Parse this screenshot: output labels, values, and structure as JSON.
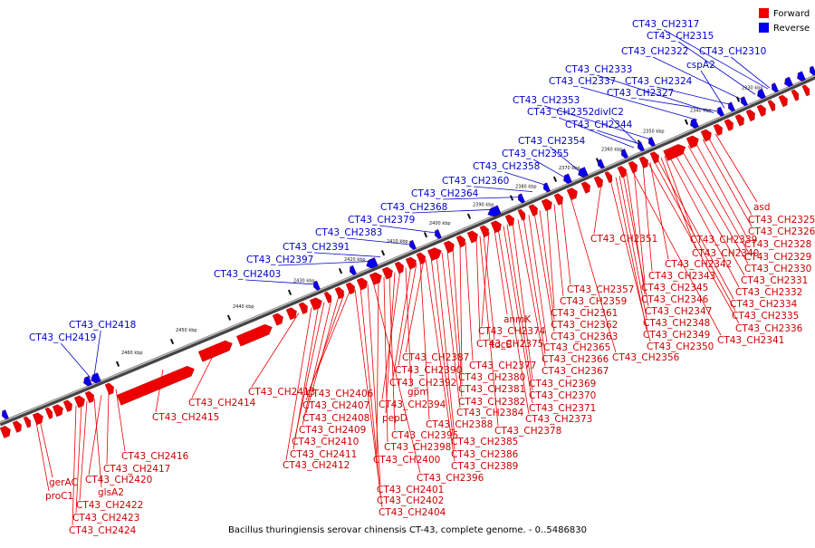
{
  "legend": [
    {
      "label": "Forward",
      "color": "#ee0000"
    },
    {
      "label": "Reverse",
      "color": "#0000ee"
    }
  ],
  "footer": "Bacillus thuringiensis serovar chinensis CT-43, complete genome. - 0..5486830",
  "ticks": [
    "2330 kbp",
    "2340 kbp",
    "2350 kbp",
    "2360 kbp",
    "2370 kbp",
    "2380 kbp",
    "2390 kbp",
    "2400 kbp",
    "2410 kbp",
    "2420 kbp",
    "2430 kbp",
    "2440 kbp",
    "2450 kbp",
    "2460 kbp"
  ],
  "reverse_labels": [
    "CT43_CH2317",
    "CT43_CH2315",
    "CT43_CH2322",
    "CT43_CH2310",
    "cspA2",
    "CT43_CH2333",
    "CT43_CH2337",
    "CT43_CH2324",
    "CT43_CH2327",
    "CT43_CH2353",
    "CT43_CH2352",
    "divIC2",
    "CT43_CH2344",
    "CT43_CH2354",
    "CT43_CH2355",
    "CT43_CH2358",
    "CT43_CH2360",
    "CT43_CH2364",
    "CT43_CH2368",
    "CT43_CH2379",
    "CT43_CH2383",
    "CT43_CH2391",
    "CT43_CH2397",
    "CT43_CH2403",
    "CT43_CH2418",
    "CT43_CH2419"
  ],
  "forward_labels": [
    "asd",
    "CT43_CH2325",
    "CT43_CH2326",
    "CT43_CH2328",
    "CT43_CH2329",
    "CT43_CH2330",
    "CT43_CH2331",
    "CT43_CH2332",
    "CT43_CH2334",
    "CT43_CH2335",
    "CT43_CH2336",
    "CT43_CH2341",
    "CT43_CH2339",
    "CT43_CH2340",
    "CT43_CH2342",
    "CT43_CH2343",
    "CT43_CH2345",
    "CT43_CH2346",
    "CT43_CH2347",
    "CT43_CH2348",
    "CT43_CH2349",
    "CT43_CH2350",
    "CT43_CH2351",
    "CT43_CH2356",
    "CT43_CH2357",
    "CT43_CH2359",
    "CT43_CH2361",
    "CT43_CH2362",
    "CT43_CH2363",
    "CT43_CH2365",
    "CT43_CH2366",
    "CT43_CH2367",
    "CT43_CH2369",
    "CT43_CH2370",
    "CT43_CH2371",
    "CT43_CH2373",
    "CT43_CH2378",
    "anmK",
    "CT43_CH2374",
    "tdcB",
    "CT43_CH2375",
    "CT43_CH2377",
    "CT43_CH2380",
    "CT43_CH2381",
    "CT43_CH2382",
    "CT43_CH2384",
    "CT43_CH2385",
    "CT43_CH2386",
    "CT43_CH2389",
    "CT43_CH2387",
    "CT43_CH2390",
    "CT43_CH2392",
    "gpm",
    "CT43_CH2394",
    "pepD",
    "CT43_CH2388",
    "CT43_CH2395",
    "CT43_CH2398",
    "CT43_CH2400",
    "CT43_CH2396",
    "CT43_CH2401",
    "CT43_CH2402",
    "CT43_CH2404",
    "CT43_CH2406",
    "CT43_CH2407",
    "CT43_CH2408",
    "CT43_CH2409",
    "CT43_CH2410",
    "CT43_CH2411",
    "CT43_CH2412",
    "CT43_CH2413",
    "CT43_CH2414",
    "CT43_CH2415",
    "CT43_CH2416",
    "CT43_CH2417",
    "CT43_CH2420",
    "glsA2",
    "gerAC",
    "proC1",
    "CT43_CH2422",
    "CT43_CH2423",
    "CT43_CH2424"
  ]
}
